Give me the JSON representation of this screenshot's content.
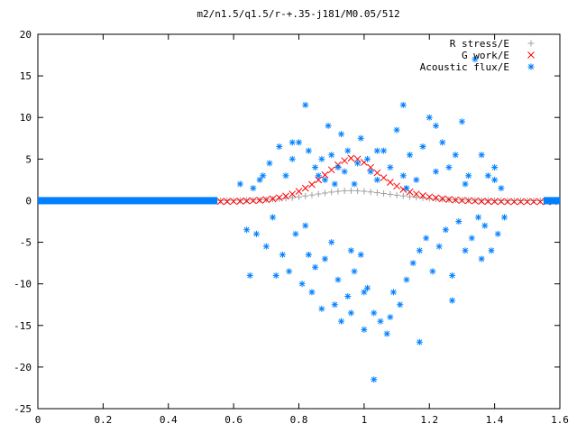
{
  "chart_data": {
    "type": "scatter",
    "title": "m2/n1.5/q1.5/r-+.35-j181/M0.05/512",
    "xlabel": "",
    "ylabel": "",
    "xlim": [
      0,
      1.6
    ],
    "ylim": [
      -25,
      20
    ],
    "x_ticks": [
      "0",
      "0.2",
      "0.4",
      "0.6",
      "0.8",
      "1",
      "1.2",
      "1.4",
      "1.6"
    ],
    "y_ticks": [
      "20",
      "15",
      "10",
      "5",
      "0",
      "-5",
      "-10",
      "-15",
      "-20",
      "-25"
    ],
    "grid": false,
    "legend_position": "top-right",
    "series": [
      {
        "name": "R stress/E",
        "marker": "+",
        "color": "#a0a0a0",
        "x": [
          0.56,
          0.58,
          0.6,
          0.62,
          0.64,
          0.66,
          0.68,
          0.7,
          0.72,
          0.74,
          0.76,
          0.78,
          0.8,
          0.82,
          0.84,
          0.86,
          0.88,
          0.9,
          0.92,
          0.94,
          0.96,
          0.98,
          1.0,
          1.02,
          1.04,
          1.06,
          1.08,
          1.1,
          1.12,
          1.14,
          1.16,
          1.18,
          1.2,
          1.22,
          1.24,
          1.26,
          1.28,
          1.3,
          1.32,
          1.34,
          1.36,
          1.38,
          1.4,
          1.42,
          1.44,
          1.46,
          1.48,
          1.5,
          1.52,
          1.54,
          1.56,
          1.58
        ],
        "y": [
          0.02,
          0.03,
          0.04,
          0.05,
          0.06,
          0.08,
          0.1,
          0.13,
          0.17,
          0.22,
          0.28,
          0.36,
          0.45,
          0.56,
          0.68,
          0.8,
          0.92,
          1.03,
          1.12,
          1.18,
          1.2,
          1.18,
          1.13,
          1.05,
          0.96,
          0.86,
          0.76,
          0.66,
          0.57,
          0.48,
          0.4,
          0.33,
          0.27,
          0.22,
          0.17,
          0.13,
          0.1,
          0.08,
          0.06,
          0.05,
          0.04,
          0.03,
          0.02,
          0.02,
          0.01,
          0.01,
          0.01,
          0.0,
          0.0,
          0.0,
          0.0,
          0.0
        ]
      },
      {
        "name": "G work/E",
        "marker": "x",
        "color": "#ff0000",
        "x": [
          0.56,
          0.58,
          0.6,
          0.62,
          0.64,
          0.66,
          0.68,
          0.7,
          0.72,
          0.74,
          0.76,
          0.78,
          0.8,
          0.82,
          0.84,
          0.86,
          0.88,
          0.9,
          0.92,
          0.94,
          0.96,
          0.98,
          1.0,
          1.02,
          1.04,
          1.06,
          1.08,
          1.1,
          1.12,
          1.14,
          1.16,
          1.18,
          1.2,
          1.22,
          1.24,
          1.26,
          1.28,
          1.3,
          1.32,
          1.34,
          1.36,
          1.38,
          1.4,
          1.42,
          1.44,
          1.46,
          1.48,
          1.5,
          1.52,
          1.54,
          1.56,
          1.58
        ],
        "y": [
          -0.1,
          -0.1,
          -0.08,
          -0.06,
          -0.03,
          0.0,
          0.05,
          0.12,
          0.22,
          0.36,
          0.55,
          0.8,
          1.12,
          1.5,
          1.95,
          2.5,
          3.1,
          3.7,
          4.3,
          4.8,
          5.1,
          5.0,
          4.6,
          4.0,
          3.35,
          2.75,
          2.2,
          1.75,
          1.35,
          1.05,
          0.8,
          0.6,
          0.45,
          0.33,
          0.22,
          0.14,
          0.08,
          0.03,
          0.0,
          -0.04,
          -0.07,
          -0.09,
          -0.1,
          -0.11,
          -0.12,
          -0.12,
          -0.12,
          -0.12,
          -0.12,
          -0.12,
          -0.12,
          -0.12
        ]
      },
      {
        "name": "Acoustic flux/E",
        "marker": "*",
        "color": "#0080ff",
        "x": [
          0.62,
          0.64,
          0.66,
          0.67,
          0.68,
          0.7,
          0.71,
          0.72,
          0.74,
          0.75,
          0.76,
          0.77,
          0.78,
          0.79,
          0.8,
          0.81,
          0.82,
          0.82,
          0.83,
          0.84,
          0.85,
          0.85,
          0.86,
          0.87,
          0.88,
          0.88,
          0.89,
          0.9,
          0.9,
          0.91,
          0.92,
          0.92,
          0.93,
          0.93,
          0.94,
          0.95,
          0.95,
          0.96,
          0.97,
          0.97,
          0.98,
          0.99,
          0.99,
          1.0,
          1.01,
          1.01,
          1.02,
          1.03,
          1.03,
          1.04,
          1.05,
          1.06,
          1.07,
          1.08,
          1.09,
          1.1,
          1.11,
          1.12,
          1.12,
          1.13,
          1.14,
          1.15,
          1.16,
          1.17,
          1.18,
          1.19,
          1.2,
          1.21,
          1.22,
          1.23,
          1.24,
          1.25,
          1.26,
          1.27,
          1.28,
          1.29,
          1.3,
          1.31,
          1.32,
          1.33,
          1.34,
          1.35,
          1.36,
          1.37,
          1.38,
          1.39,
          1.4,
          1.41,
          1.42,
          1.43,
          0.65,
          0.69,
          0.73,
          0.78,
          0.83,
          0.87,
          0.91,
          0.96,
          1.0,
          1.04,
          1.08,
          1.13,
          1.17,
          1.22,
          1.27,
          1.31,
          1.36,
          1.4
        ],
        "y": [
          2.0,
          -3.5,
          1.5,
          -4.0,
          2.5,
          -5.5,
          4.5,
          -2.0,
          6.5,
          -6.5,
          3.0,
          -8.5,
          5.0,
          -4.0,
          7.0,
          -10.0,
          11.5,
          -3.0,
          6.0,
          -11.0,
          4.0,
          -8.0,
          3.0,
          -13.0,
          2.5,
          -7.0,
          9.0,
          -5.0,
          5.5,
          -12.5,
          4.0,
          -9.5,
          8.0,
          -14.5,
          3.5,
          -11.5,
          6.0,
          -13.5,
          2.0,
          -8.5,
          4.5,
          -6.5,
          7.5,
          -15.5,
          5.0,
          -10.5,
          3.5,
          -13.5,
          -21.5,
          2.5,
          -14.5,
          6.0,
          -16.0,
          4.0,
          -11.0,
          8.5,
          -12.5,
          3.0,
          11.5,
          -9.5,
          5.5,
          -7.5,
          2.5,
          -6.0,
          6.5,
          -4.5,
          10.0,
          -8.5,
          3.5,
          -5.5,
          7.0,
          -3.5,
          4.0,
          -9.0,
          5.5,
          -2.5,
          9.5,
          -6.0,
          3.0,
          -4.5,
          17.0,
          -2.0,
          5.5,
          -3.0,
          3.0,
          -6.0,
          2.5,
          -4.0,
          1.5,
          -2.0,
          -9.0,
          3.0,
          -9.0,
          7.0,
          -6.5,
          5.0,
          2.0,
          -6.0,
          -11.0,
          6.0,
          -14.0,
          1.5,
          -17.0,
          9.0,
          -12.0,
          2.0,
          -7.0,
          4.0
        ],
        "baseline_left_x": [
          0,
          0.55
        ],
        "baseline_right_x": [
          1.55,
          1.6
        ]
      }
    ]
  }
}
